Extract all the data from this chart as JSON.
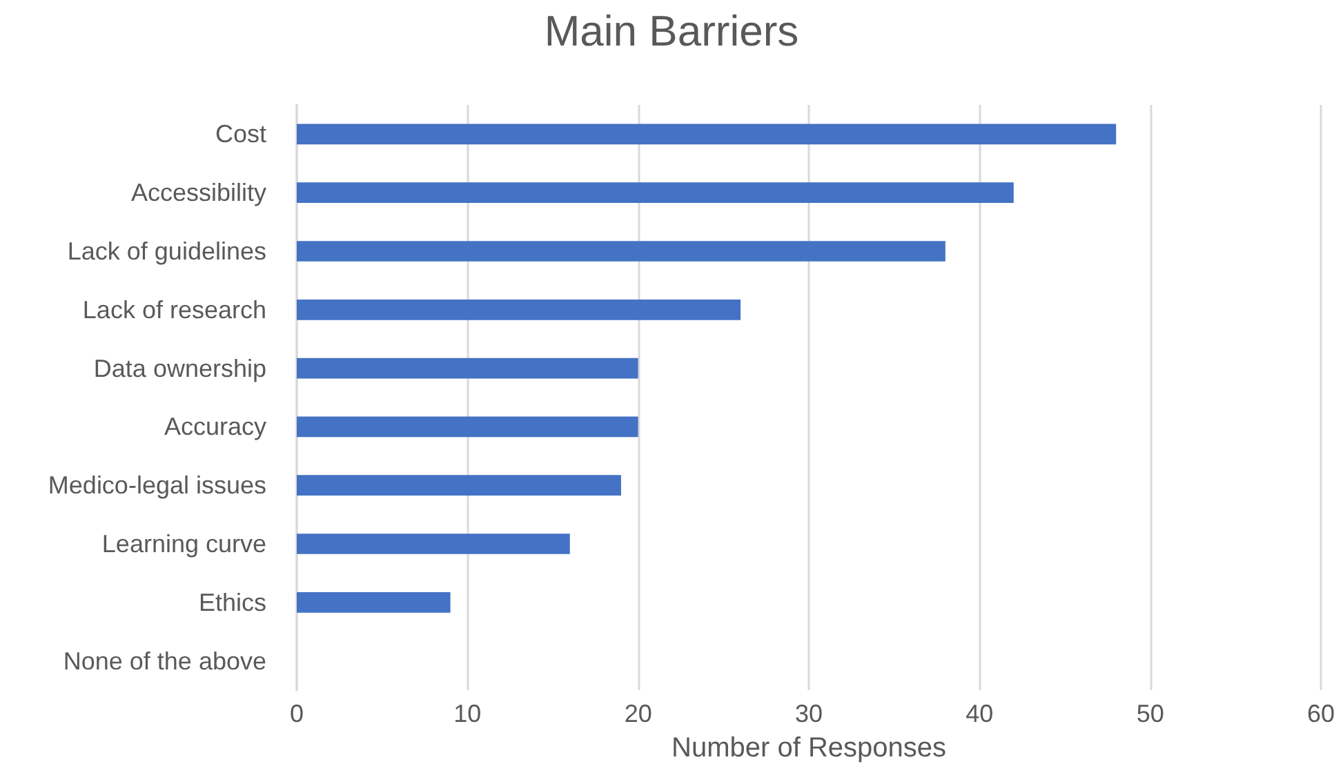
{
  "chart_data": {
    "type": "bar",
    "title": "Main Barriers",
    "xlabel": "Number of Responses",
    "orientation": "horizontal",
    "categories": [
      "Cost",
      "Accessibility",
      "Lack of guidelines",
      "Lack of research",
      "Data ownership",
      "Accuracy",
      "Medico-legal issues",
      "Learning curve",
      "Ethics",
      "None of the above"
    ],
    "values": [
      48,
      42,
      38,
      26,
      20,
      20,
      19,
      16,
      9,
      0
    ],
    "color": "#4472c4",
    "xlim": [
      0,
      60
    ],
    "xticks": [
      0,
      10,
      20,
      30,
      40,
      50,
      60
    ],
    "grid": "x"
  }
}
